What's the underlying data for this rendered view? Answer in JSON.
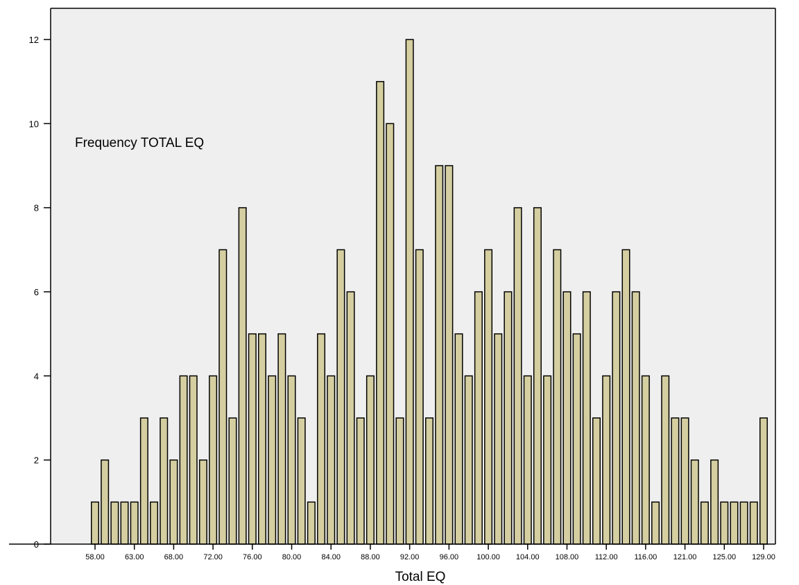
{
  "chart_data": {
    "type": "bar",
    "title": "Frequency TOTAL EQ",
    "xlabel": "Total EQ",
    "ylabel": "",
    "ylim": [
      0,
      12
    ],
    "yticks": [
      "0",
      "2",
      "4",
      "6",
      "8",
      "10",
      "12"
    ],
    "xtick_labels": [
      "58.00",
      "63.00",
      "68.00",
      "72.00",
      "76.00",
      "80.00",
      "84.00",
      "88.00",
      "92.00",
      "96.00",
      "100.00",
      "104.00",
      "108.00",
      "112.00",
      "116.00",
      "121.00",
      "125.00",
      "129.00"
    ],
    "xtick_bar_index": [
      0,
      4,
      8,
      12,
      16,
      20,
      24,
      28,
      32,
      36,
      40,
      44,
      48,
      52,
      56,
      60,
      64,
      68
    ],
    "values": [
      1,
      2,
      1,
      1,
      1,
      3,
      1,
      3,
      2,
      4,
      4,
      2,
      4,
      7,
      3,
      8,
      5,
      5,
      4,
      5,
      4,
      3,
      1,
      5,
      4,
      7,
      6,
      3,
      4,
      11,
      10,
      3,
      12,
      7,
      3,
      9,
      9,
      5,
      4,
      6,
      7,
      5,
      6,
      8,
      4,
      8,
      4,
      7,
      6,
      5,
      6,
      3,
      4,
      6,
      7,
      6,
      4,
      1,
      4,
      3,
      3,
      2,
      1,
      2,
      1,
      1,
      1,
      1,
      3
    ],
    "bar_color": "#d4cea0",
    "bar_stroke": "#000000",
    "plot_background": "#efefef",
    "grid": false
  }
}
